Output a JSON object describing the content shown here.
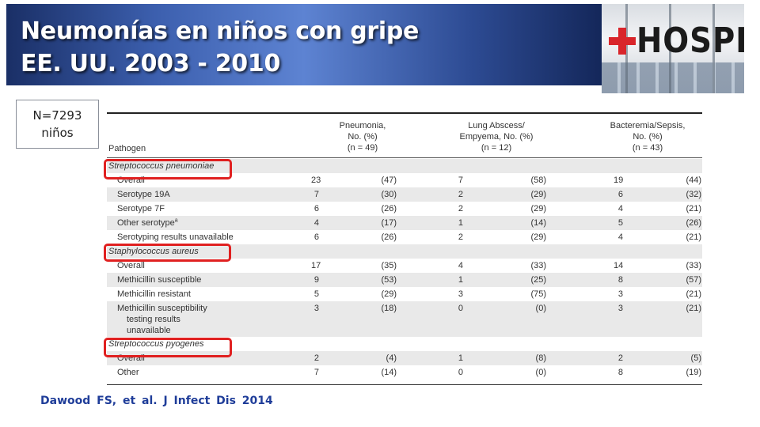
{
  "title": {
    "line1": "Neumonías en niños con gripe",
    "line2": "EE. UU. 2003 - 2010"
  },
  "photo": {
    "sign_text": "HOSPITA",
    "sign_icon": "red-cross-icon",
    "cross_color": "#d9252b"
  },
  "sample_box": {
    "line1": "N=7293",
    "line2": "niños"
  },
  "table": {
    "headers": {
      "pathogen": "Pathogen",
      "pneumonia": [
        "Pneumonia,",
        "No. (%)",
        "(n = 49)"
      ],
      "abscess": [
        "Lung Abscess/",
        "Empyema, No. (%)",
        "(n = 12)"
      ],
      "bacteremia": [
        "Bacteremia/Sepsis,",
        "No. (%)",
        "(n = 43)"
      ]
    },
    "rows": [
      {
        "type": "section",
        "label": "Streptococcus pneumoniae"
      },
      {
        "label": "Overall",
        "n1": "23",
        "p1": "(47)",
        "n2": "7",
        "p2": "(58)",
        "n3": "19",
        "p3": "(44)"
      },
      {
        "label": "Serotype 19A",
        "n1": "7",
        "p1": "(30)",
        "n2": "2",
        "p2": "(29)",
        "n3": "6",
        "p3": "(32)"
      },
      {
        "label": "Serotype 7F",
        "n1": "6",
        "p1": "(26)",
        "n2": "2",
        "p2": "(29)",
        "n3": "4",
        "p3": "(21)"
      },
      {
        "label": "Other serotype",
        "sup": "a",
        "n1": "4",
        "p1": "(17)",
        "n2": "1",
        "p2": "(14)",
        "n3": "5",
        "p3": "(26)"
      },
      {
        "label": "Serotyping results unavailable",
        "n1": "6",
        "p1": "(26)",
        "n2": "2",
        "p2": "(29)",
        "n3": "4",
        "p3": "(21)"
      },
      {
        "type": "section",
        "label": "Staphylococcus aureus"
      },
      {
        "label": "Overall",
        "n1": "17",
        "p1": "(35)",
        "n2": "4",
        "p2": "(33)",
        "n3": "14",
        "p3": "(33)"
      },
      {
        "label": "Methicillin susceptible",
        "n1": "9",
        "p1": "(53)",
        "n2": "1",
        "p2": "(25)",
        "n3": "8",
        "p3": "(57)"
      },
      {
        "label": "Methicillin resistant",
        "n1": "5",
        "p1": "(29)",
        "n2": "3",
        "p2": "(75)",
        "n3": "3",
        "p3": "(21)"
      },
      {
        "label_lines": [
          "Methicillin susceptibility",
          "testing results",
          "unavailable"
        ],
        "n1": "3",
        "p1": "(18)",
        "n2": "0",
        "p2": "(0)",
        "n3": "3",
        "p3": "(21)"
      },
      {
        "type": "section",
        "label": "Streptococcus pyogenes"
      },
      {
        "label": "Overall",
        "n1": "2",
        "p1": "(4)",
        "n2": "1",
        "p2": "(8)",
        "n3": "2",
        "p3": "(5)"
      },
      {
        "label": "Other",
        "n1": "7",
        "p1": "(14)",
        "n2": "0",
        "p2": "(0)",
        "n3": "8",
        "p3": "(19)"
      }
    ]
  },
  "highlight_color": "#e02020",
  "citation": "Dawood FS, et al. J Infect Dis 2014"
}
